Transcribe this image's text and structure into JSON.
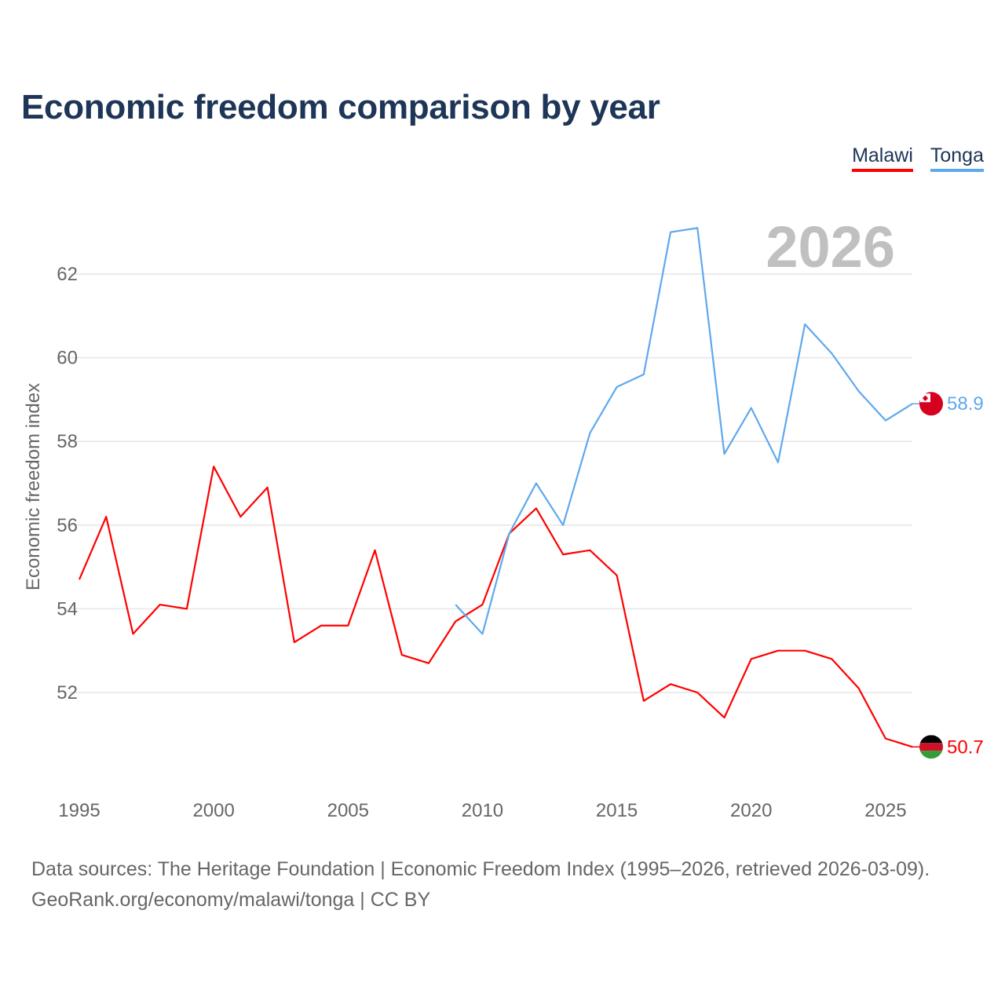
{
  "title": "Economic freedom comparison by year",
  "year_label": "2026",
  "footer": {
    "line1": "Data sources: The Heritage Foundation | Economic Freedom Index (1995–2026, retrieved 2026-03-09).",
    "line2": "GeoRank.org/economy/malawi/tonga | CC BY"
  },
  "chart_data": {
    "type": "line",
    "title": "Economic freedom comparison by year",
    "xlabel": "",
    "ylabel": "Economic freedom index",
    "xlim": [
      1995,
      2026
    ],
    "ylim": [
      50,
      63.5
    ],
    "x_ticks": [
      "1995",
      "2000",
      "2005",
      "2010",
      "2015",
      "2020",
      "2025"
    ],
    "y_ticks": [
      "52",
      "54",
      "56",
      "58",
      "60",
      "62"
    ],
    "grid": true,
    "legend": "top-right",
    "series": [
      {
        "name": "Malawi",
        "color": "#ff0000",
        "end_label": "50.7",
        "x": [
          1995,
          1996,
          1997,
          1998,
          1999,
          2000,
          2001,
          2002,
          2003,
          2004,
          2005,
          2006,
          2007,
          2008,
          2009,
          2010,
          2011,
          2012,
          2013,
          2014,
          2015,
          2016,
          2017,
          2018,
          2019,
          2020,
          2021,
          2022,
          2023,
          2024,
          2025,
          2026
        ],
        "values": [
          54.7,
          56.2,
          53.4,
          54.1,
          54.0,
          57.4,
          56.2,
          56.9,
          53.2,
          53.6,
          53.6,
          55.4,
          52.9,
          52.7,
          53.7,
          54.1,
          55.8,
          56.4,
          55.3,
          55.4,
          54.8,
          51.8,
          52.2,
          52.0,
          51.4,
          52.8,
          53.0,
          53.0,
          52.8,
          52.1,
          50.9,
          50.7
        ]
      },
      {
        "name": "Tonga",
        "color": "#5fa8ee",
        "end_label": "58.9",
        "x": [
          2009,
          2010,
          2011,
          2012,
          2013,
          2014,
          2015,
          2016,
          2017,
          2018,
          2019,
          2020,
          2021,
          2022,
          2023,
          2024,
          2025,
          2026
        ],
        "values": [
          54.1,
          53.4,
          55.8,
          57.0,
          56.0,
          58.2,
          59.3,
          59.6,
          63.0,
          63.1,
          57.7,
          58.8,
          57.5,
          60.8,
          60.1,
          59.2,
          58.5,
          58.9
        ]
      }
    ]
  }
}
